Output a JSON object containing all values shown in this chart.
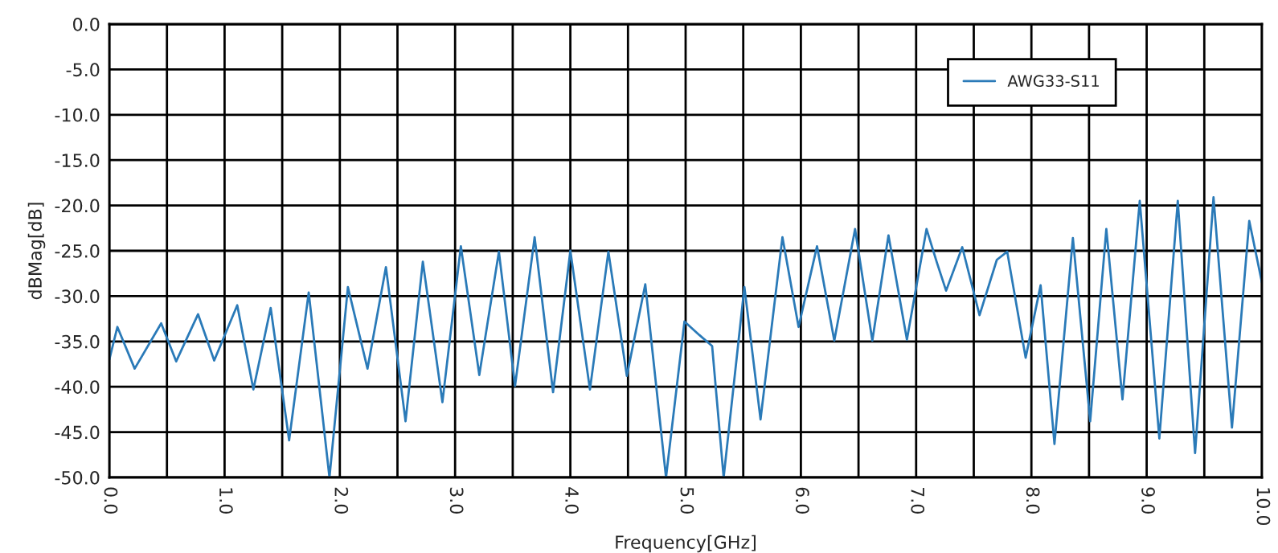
{
  "chart_data": {
    "type": "line",
    "xlabel": "Frequency[GHz]",
    "ylabel": "dBMag[dB]",
    "series": [
      {
        "name": "AWG33-S11",
        "color": "#2a7ab8",
        "x": [
          0.0,
          0.07,
          0.22,
          0.45,
          0.58,
          0.77,
          0.91,
          1.11,
          1.25,
          1.4,
          1.56,
          1.73,
          1.91,
          2.07,
          2.24,
          2.4,
          2.57,
          2.72,
          2.89,
          3.05,
          3.21,
          3.38,
          3.52,
          3.69,
          3.85,
          4.0,
          4.17,
          4.33,
          4.49,
          4.65,
          4.83,
          4.99,
          5.12,
          5.23,
          5.33,
          5.51,
          5.65,
          5.84,
          5.98,
          6.14,
          6.29,
          6.47,
          6.62,
          6.76,
          6.92,
          7.09,
          7.18,
          7.26,
          7.4,
          7.55,
          7.7,
          7.79,
          7.95,
          8.08,
          8.2,
          8.36,
          8.51,
          8.65,
          8.79,
          8.94,
          9.11,
          9.27,
          9.42,
          9.58,
          9.74,
          9.89,
          10.0
        ],
        "values": [
          -37.0,
          -33.4,
          -38.0,
          -33.0,
          -37.2,
          -32.0,
          -37.1,
          -31.0,
          -40.3,
          -31.3,
          -45.9,
          -29.6,
          -50.0,
          -29.0,
          -38.0,
          -26.8,
          -43.8,
          -26.2,
          -41.7,
          -24.5,
          -38.7,
          -25.1,
          -39.9,
          -23.5,
          -40.6,
          -25.0,
          -40.3,
          -25.1,
          -38.8,
          -28.7,
          -50.0,
          -32.8,
          -34.3,
          -35.5,
          -50.0,
          -29.0,
          -43.6,
          -23.5,
          -33.4,
          -24.5,
          -34.9,
          -22.6,
          -34.9,
          -23.3,
          -34.8,
          -22.6,
          -26.3,
          -29.4,
          -24.6,
          -32.1,
          -26.0,
          -25.1,
          -36.8,
          -28.8,
          -46.3,
          -23.6,
          -43.8,
          -22.6,
          -41.4,
          -19.5,
          -45.7,
          -19.5,
          -47.3,
          -19.1,
          -44.5,
          -21.7,
          -28.5
        ]
      }
    ],
    "xlim": [
      0,
      10
    ],
    "xticks": [
      {
        "value": 0,
        "label": "0.0"
      },
      {
        "value": 0.5,
        "label": null
      },
      {
        "value": 1,
        "label": "1.0"
      },
      {
        "value": 1.5,
        "label": null
      },
      {
        "value": 2,
        "label": "2.0"
      },
      {
        "value": 2.5,
        "label": null
      },
      {
        "value": 3,
        "label": "3.0"
      },
      {
        "value": 3.5,
        "label": null
      },
      {
        "value": 4,
        "label": "4.0"
      },
      {
        "value": 4.5,
        "label": null
      },
      {
        "value": 5,
        "label": "5.0"
      },
      {
        "value": 5.5,
        "label": null
      },
      {
        "value": 6,
        "label": "6.0"
      },
      {
        "value": 6.5,
        "label": null
      },
      {
        "value": 7,
        "label": "7.0"
      },
      {
        "value": 7.5,
        "label": null
      },
      {
        "value": 8,
        "label": "8.0"
      },
      {
        "value": 8.5,
        "label": null
      },
      {
        "value": 9,
        "label": "9.0"
      },
      {
        "value": 9.5,
        "label": null
      },
      {
        "value": 10,
        "label": "10.0"
      }
    ],
    "ylim": [
      -50,
      0
    ],
    "yticks": [
      {
        "value": 0,
        "label": "0.0"
      },
      {
        "value": -5,
        "label": "-5.0"
      },
      {
        "value": -10,
        "label": "-10.0"
      },
      {
        "value": -15,
        "label": "-15.0"
      },
      {
        "value": -20,
        "label": "-20.0"
      },
      {
        "value": -25,
        "label": "-25.0"
      },
      {
        "value": -30,
        "label": "-30.0"
      },
      {
        "value": -35,
        "label": "-35.0"
      },
      {
        "value": -40,
        "label": "-40.0"
      },
      {
        "value": -45,
        "label": "-45.0"
      },
      {
        "value": -50,
        "label": "-50.0"
      }
    ],
    "grid": true,
    "legend": "top right",
    "marker": "none",
    "line_style": "solid"
  }
}
